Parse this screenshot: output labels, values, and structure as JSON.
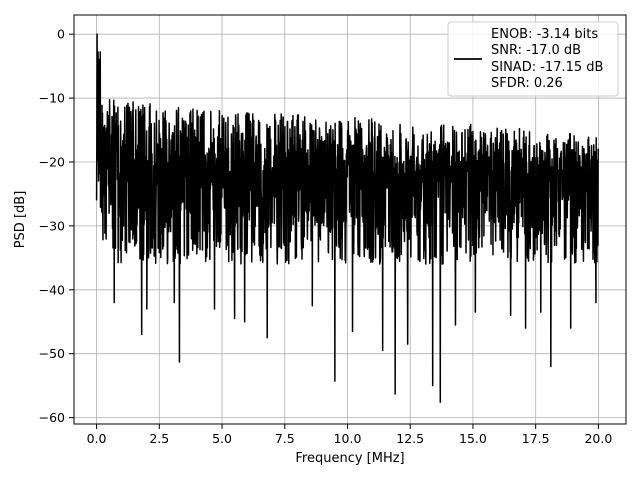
{
  "chart_data": {
    "type": "line",
    "xlabel": "Frequency [MHz]",
    "ylabel": "PSD [dB]",
    "xlim": [
      -0.9,
      21.1
    ],
    "ylim": [
      -61,
      3
    ],
    "x_ticks": [
      0.0,
      2.5,
      5.0,
      7.5,
      10.0,
      12.5,
      15.0,
      17.5,
      20.0
    ],
    "x_tick_labels": [
      "0.0",
      "2.5",
      "5.0",
      "7.5",
      "10.0",
      "12.5",
      "15.0",
      "17.5",
      "20.0"
    ],
    "y_ticks": [
      0,
      -10,
      -20,
      -30,
      -40,
      -50,
      -60
    ],
    "y_tick_labels": [
      "0",
      "−10",
      "−20",
      "−30",
      "−40",
      "−50",
      "−60"
    ],
    "grid": true,
    "legend_position": "top-right",
    "colors": {
      "line": "#000000",
      "grid": "#b0b0b0",
      "frame": "#000000"
    },
    "series": [
      {
        "legend_lines": [
          "ENOB: -3.14 bits",
          "SNR: -17.0 dB",
          "SINAD: -17.15 dB",
          "SFDR: 0.26"
        ],
        "x_range": [
          0.0,
          20.0
        ],
        "peak": {
          "x": 0.02,
          "y": 0.0
        },
        "upper_envelope_db": [
          -10,
          -12,
          -13,
          -14,
          -16
        ],
        "typical_level_db": -23,
        "floor_db": -36,
        "deep_nulls": [
          {
            "x": 0.7,
            "y": -42
          },
          {
            "x": 1.8,
            "y": -47
          },
          {
            "x": 2.0,
            "y": -43
          },
          {
            "x": 3.1,
            "y": -42
          },
          {
            "x": 3.3,
            "y": -51.3
          },
          {
            "x": 4.7,
            "y": -43
          },
          {
            "x": 5.5,
            "y": -44.5
          },
          {
            "x": 5.9,
            "y": -45
          },
          {
            "x": 6.8,
            "y": -47.5
          },
          {
            "x": 8.6,
            "y": -42.5
          },
          {
            "x": 9.5,
            "y": -54.3
          },
          {
            "x": 10.2,
            "y": -46.5
          },
          {
            "x": 11.4,
            "y": -49.5
          },
          {
            "x": 11.9,
            "y": -56.3
          },
          {
            "x": 12.4,
            "y": -48.5
          },
          {
            "x": 13.4,
            "y": -55
          },
          {
            "x": 13.7,
            "y": -57.6
          },
          {
            "x": 14.3,
            "y": -45.5
          },
          {
            "x": 15.1,
            "y": -43.5
          },
          {
            "x": 16.5,
            "y": -44
          },
          {
            "x": 17.1,
            "y": -46
          },
          {
            "x": 17.7,
            "y": -43.5
          },
          {
            "x": 18.1,
            "y": -52
          },
          {
            "x": 18.9,
            "y": -46
          },
          {
            "x": 19.9,
            "y": -42
          }
        ]
      }
    ]
  }
}
